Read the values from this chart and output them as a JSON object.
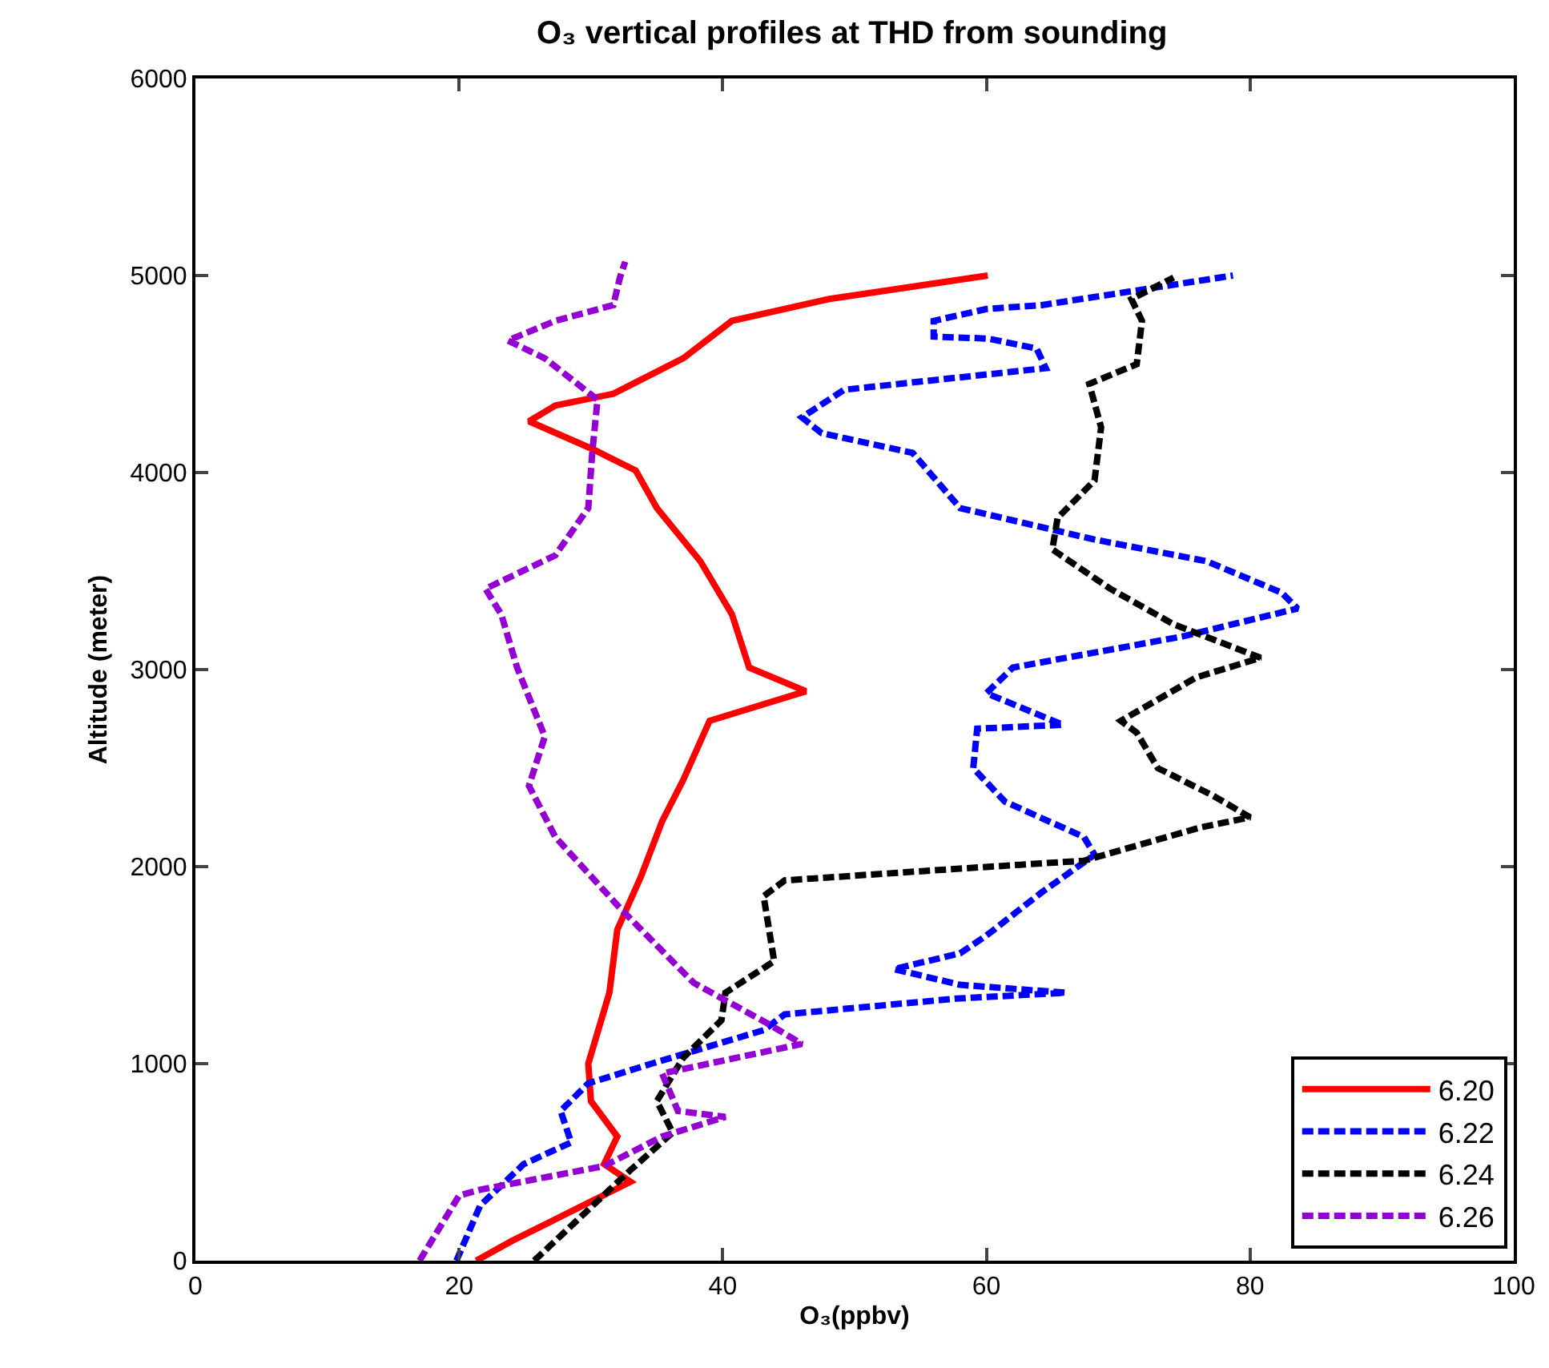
{
  "chart_data": {
    "type": "line",
    "title": "O₃ vertical profiles at THD from sounding",
    "xlabel": "O₃(ppbv)",
    "ylabel": "Altitude (meter)",
    "xlim": [
      0,
      100
    ],
    "xticks": [
      0,
      20,
      40,
      60,
      80,
      100
    ],
    "ylim": [
      0,
      6000
    ],
    "yticks": [
      0,
      1000,
      2000,
      3000,
      4000,
      5000,
      6000
    ],
    "grid": false,
    "legend": "bottom right",
    "marker": "none",
    "series": [
      {
        "name": "6.20",
        "color": "#ff0000",
        "line_style": "solid",
        "x": [
          21.3,
          24,
          27,
          30,
          33,
          31,
          32,
          30,
          29.8,
          31.4,
          32,
          33.8,
          35.4,
          37,
          39,
          46.3,
          42,
          40.7,
          38.3,
          35,
          33.4,
          30.1,
          25.3,
          27.3,
          31.7,
          37,
          40.7,
          48,
          60.1
        ],
        "values": [
          0,
          100,
          200,
          300,
          400,
          490,
          630,
          810,
          1000,
          1360,
          1680,
          1950,
          2230,
          2440,
          2740,
          2890,
          3010,
          3280,
          3550,
          3820,
          4010,
          4120,
          4260,
          4340,
          4400,
          4580,
          4770,
          4880,
          5000
        ]
      },
      {
        "name": "6.22",
        "color": "#0000ff",
        "line_style": "dashed",
        "x": [
          19.8,
          21.6,
          24.9,
          28.5,
          27.7,
          29.8,
          34.6,
          43.1,
          44.7,
          57.7,
          66,
          58,
          53,
          58,
          60,
          64.2,
          68.2,
          67.4,
          61.4,
          59,
          59.3,
          65.8,
          60,
          62,
          75,
          83.6,
          82.4,
          76.7,
          68.2,
          58,
          54.4,
          47.5,
          46,
          49.2,
          64.5,
          63.8,
          60.1,
          56,
          56,
          60,
          64.2,
          71,
          78.7
        ],
        "values": [
          0,
          280,
          490,
          600,
          760,
          900,
          1000,
          1170,
          1250,
          1330,
          1360,
          1400,
          1480,
          1560,
          1650,
          1870,
          2060,
          2150,
          2330,
          2500,
          2700,
          2720,
          2880,
          3010,
          3170,
          3310,
          3390,
          3550,
          3660,
          3820,
          4100,
          4200,
          4280,
          4420,
          4530,
          4630,
          4680,
          4690,
          4770,
          4830,
          4850,
          4920,
          5000
        ]
      },
      {
        "name": "6.24",
        "color": "#000000",
        "line_style": "dashed",
        "x": [
          25.7,
          33,
          36.2,
          35,
          37,
          39.9,
          40.2,
          43.9,
          43.1,
          44.7,
          58,
          67.4,
          76.3,
          80,
          77.2,
          73,
          71.4,
          70.2,
          75.9,
          80.8,
          74.2,
          69.4,
          65,
          65.4,
          68.2,
          68.7,
          67.8,
          71.4,
          71.8,
          71,
          74.2
        ],
        "values": [
          0,
          460,
          650,
          810,
          1030,
          1220,
          1360,
          1520,
          1850,
          1930,
          1990,
          2030,
          2200,
          2250,
          2360,
          2500,
          2680,
          2740,
          2960,
          3060,
          3230,
          3410,
          3610,
          3770,
          3960,
          4230,
          4450,
          4550,
          4770,
          4880,
          4990
        ]
      },
      {
        "name": "6.26",
        "color": "#9400d3",
        "line_style": "dashed",
        "x": [
          17,
          20,
          21.6,
          31,
          35.4,
          40.2,
          36.6,
          35.4,
          46,
          43.5,
          37.8,
          32.2,
          27.3,
          25.3,
          26.5,
          24.4,
          23.2,
          22,
          27.3,
          29.8,
          30.1,
          30.5,
          26.5,
          23.7,
          27.3,
          31.7,
          32.2,
          32.6
        ],
        "values": [
          0,
          330,
          360,
          480,
          630,
          730,
          760,
          950,
          1100,
          1200,
          1410,
          1790,
          2150,
          2410,
          2660,
          3010,
          3280,
          3410,
          3580,
          3820,
          4100,
          4370,
          4580,
          4670,
          4770,
          4850,
          4990,
          5070
        ]
      }
    ]
  }
}
